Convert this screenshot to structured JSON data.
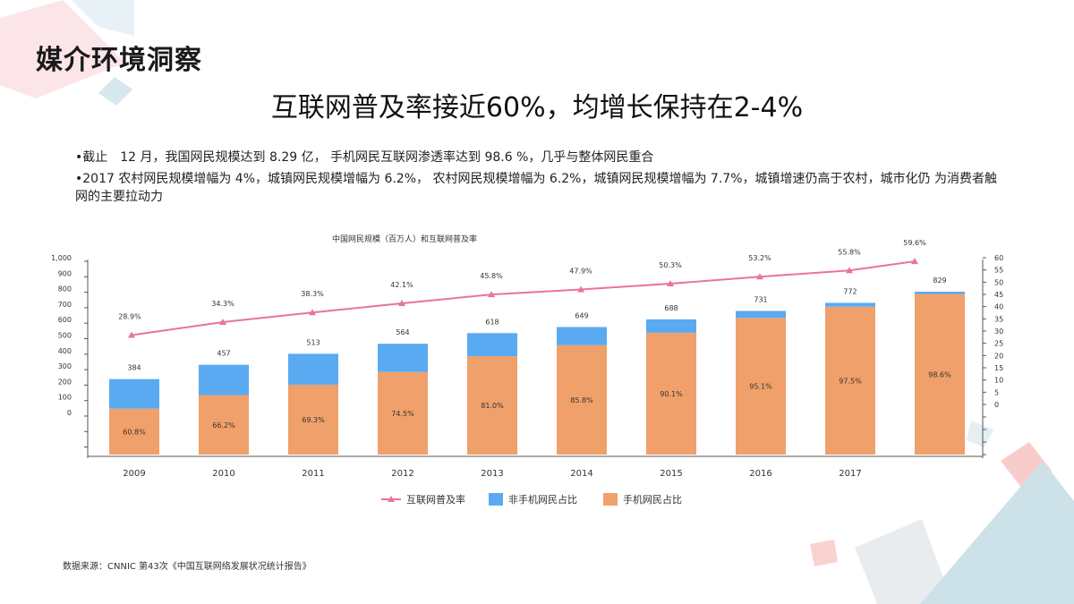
{
  "header": {
    "section_title": "媒介环境洞察",
    "headline": "互联网普及率接近60%，均增长保持在2-4%"
  },
  "bullets": [
    "•截止　12 月，我国网民规模达到 8.29 亿， 手机网民互联网渗透率达到 98.6 %，几乎与整体网民重合",
    "•2017 农村网民规模增幅为 4%，城镇网民规模增幅为 6.2%， 农村网民规模增幅为 6.2%，城镇网民规模增幅为 7.7%，城镇增速仍高于农村，城市化仍 为消费者触网的主要拉动力"
  ],
  "source": "数据来源：CNNIC 第43次《中国互联网络发展状况统计报告》",
  "colors": {
    "line": "#e9739e",
    "non_mobile": "#5aaaf2",
    "mobile": "#f0a06a",
    "deco_pink": "#f7c9cf",
    "deco_blue": "#cfe3ec"
  },
  "chart_data": {
    "type": "bar",
    "title": "中国网民规模（百万人）和互联网普及率",
    "categories": [
      "2009",
      "2010",
      "2011",
      "2012",
      "2013",
      "2014",
      "2015",
      "2016",
      "2017",
      ""
    ],
    "totals": [
      384,
      457,
      513,
      564,
      618,
      649,
      688,
      731,
      772,
      829
    ],
    "total_labels": [
      "384",
      "457",
      "513",
      "564",
      "618",
      "649",
      "688",
      "731",
      "772",
      "829"
    ],
    "mobile_share_labels": [
      "60.8%",
      "66.2%",
      "69.3%",
      "74.5%",
      "81.0%",
      "85.8%",
      "90.1%",
      "95.1%",
      "97.5%",
      "98.6%"
    ],
    "mobile_share": [
      60.8,
      66.2,
      69.3,
      74.5,
      81.0,
      85.8,
      90.1,
      95.1,
      97.5,
      98.6
    ],
    "penetration_labels": [
      "28.9%",
      "34.3%",
      "38.3%",
      "42.1%",
      "45.8%",
      "47.9%",
      "50.3%",
      "53.2%",
      "55.8%",
      "59.6%"
    ],
    "penetration": [
      28.9,
      34.3,
      38.3,
      42.1,
      45.8,
      47.9,
      50.3,
      53.2,
      55.8,
      59.6
    ],
    "series": [
      {
        "name": "互联网普及率",
        "axis": "right",
        "kind": "line"
      },
      {
        "name": "非手机网民占比",
        "axis": "left",
        "kind": "bar"
      },
      {
        "name": "手机网民占比",
        "axis": "left",
        "kind": "bar"
      }
    ],
    "left_axis_ticks": [
      "1,000",
      "900",
      "800",
      "700",
      "600",
      "500",
      "400",
      "300",
      "200",
      "100",
      "0"
    ],
    "right_axis_ticks": [
      "60",
      "55",
      "50",
      "45",
      "40",
      "35",
      "30",
      "25",
      "20",
      "15",
      "10",
      "5",
      "0"
    ],
    "left_axis_range": [
      0,
      1000
    ],
    "right_axis_range": [
      0,
      60
    ],
    "legend_position": "bottom",
    "grid": false
  }
}
